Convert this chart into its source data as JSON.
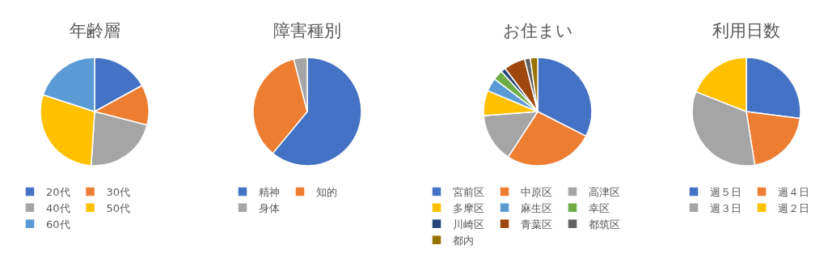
{
  "chart_data": [
    {
      "type": "pie",
      "title": "年齢層",
      "categories": [
        "20代",
        "30代",
        "40代",
        "50代",
        "60代"
      ],
      "values": [
        17,
        12,
        22,
        29,
        20
      ],
      "colors": [
        "#4472c4",
        "#ed7d31",
        "#a5a5a5",
        "#ffc000",
        "#5b9bd5"
      ],
      "legend": "bottom"
    },
    {
      "type": "pie",
      "title": "障害種別",
      "categories": [
        "精神",
        "知的",
        "身体"
      ],
      "values": [
        61,
        35,
        4
      ],
      "colors": [
        "#4472c4",
        "#ed7d31",
        "#a5a5a5"
      ],
      "legend": "bottom"
    },
    {
      "type": "pie",
      "title": "お住まい",
      "categories": [
        "宮前区",
        "中原区",
        "高津区",
        "多摩区",
        "麻生区",
        "幸区",
        "川崎区",
        "青葉区",
        "都筑区",
        "都内"
      ],
      "values": [
        32.5,
        26.7,
        14.6,
        7.5,
        4,
        3,
        1.4,
        6.4,
        1.7,
        2.2
      ],
      "colors": [
        "#4472c4",
        "#ed7d31",
        "#a5a5a5",
        "#ffc000",
        "#5b9bd5",
        "#70ad47",
        "#264478",
        "#9e480e",
        "#636363",
        "#997300"
      ],
      "legend": "bottom"
    },
    {
      "type": "pie",
      "title": "利用日数",
      "categories": [
        "週５日",
        "週４日",
        "週３日",
        "週２日"
      ],
      "values": [
        27,
        20.5,
        33.5,
        19
      ],
      "colors": [
        "#4472c4",
        "#ed7d31",
        "#a5a5a5",
        "#ffc000"
      ],
      "legend": "bottom"
    }
  ]
}
